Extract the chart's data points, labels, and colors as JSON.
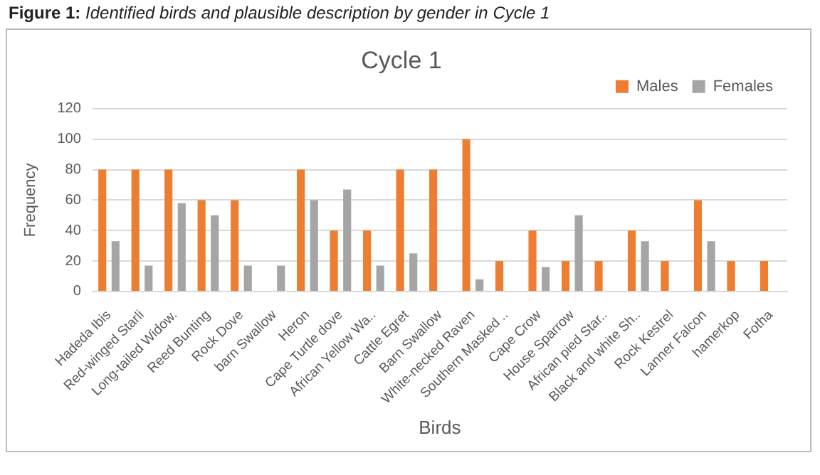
{
  "chart_data": {
    "type": "bar",
    "title": "Cycle 1",
    "xlabel": "Birds",
    "ylabel": "Frequency",
    "annotations": [
      "Figure 1: Identified birds and plausible description by gender in Cycle 1"
    ],
    "categories": [
      "Hadeda Ibis",
      "Red-winged Starli",
      "Long-tailed Widow.",
      "Reed Bunting",
      "Rock Dove",
      "barn Swallow",
      "Heron",
      "Cape Turtle dove",
      "African Yellow Wa..",
      "Cattle Egret",
      "Barn Swallow",
      "White-necked Raven",
      "Southern Masked ..",
      "Cape Crow",
      "House Sparrow",
      "African pied Star..",
      "Black and white Sh..",
      "Rock Kestrel",
      "Lanner Falcon",
      "hamerkop",
      "Fotha"
    ],
    "series": [
      {
        "name": "Males",
        "color": "#ed7d31",
        "values": [
          80,
          80,
          80,
          60,
          60,
          null,
          80,
          40,
          40,
          80,
          80,
          100,
          20,
          40,
          20,
          20,
          40,
          20,
          60,
          20,
          20
        ]
      },
      {
        "name": "Females",
        "color": "#a5a5a5",
        "values": [
          33,
          17,
          58,
          50,
          17,
          17,
          60,
          67,
          17,
          25,
          null,
          8,
          null,
          16,
          50,
          null,
          33,
          null,
          33,
          null,
          null
        ]
      }
    ],
    "ylim": [
      0,
      120
    ],
    "yticks": [
      0,
      20,
      40,
      60,
      80,
      100,
      120
    ],
    "grid": "y",
    "legend": "top right"
  }
}
